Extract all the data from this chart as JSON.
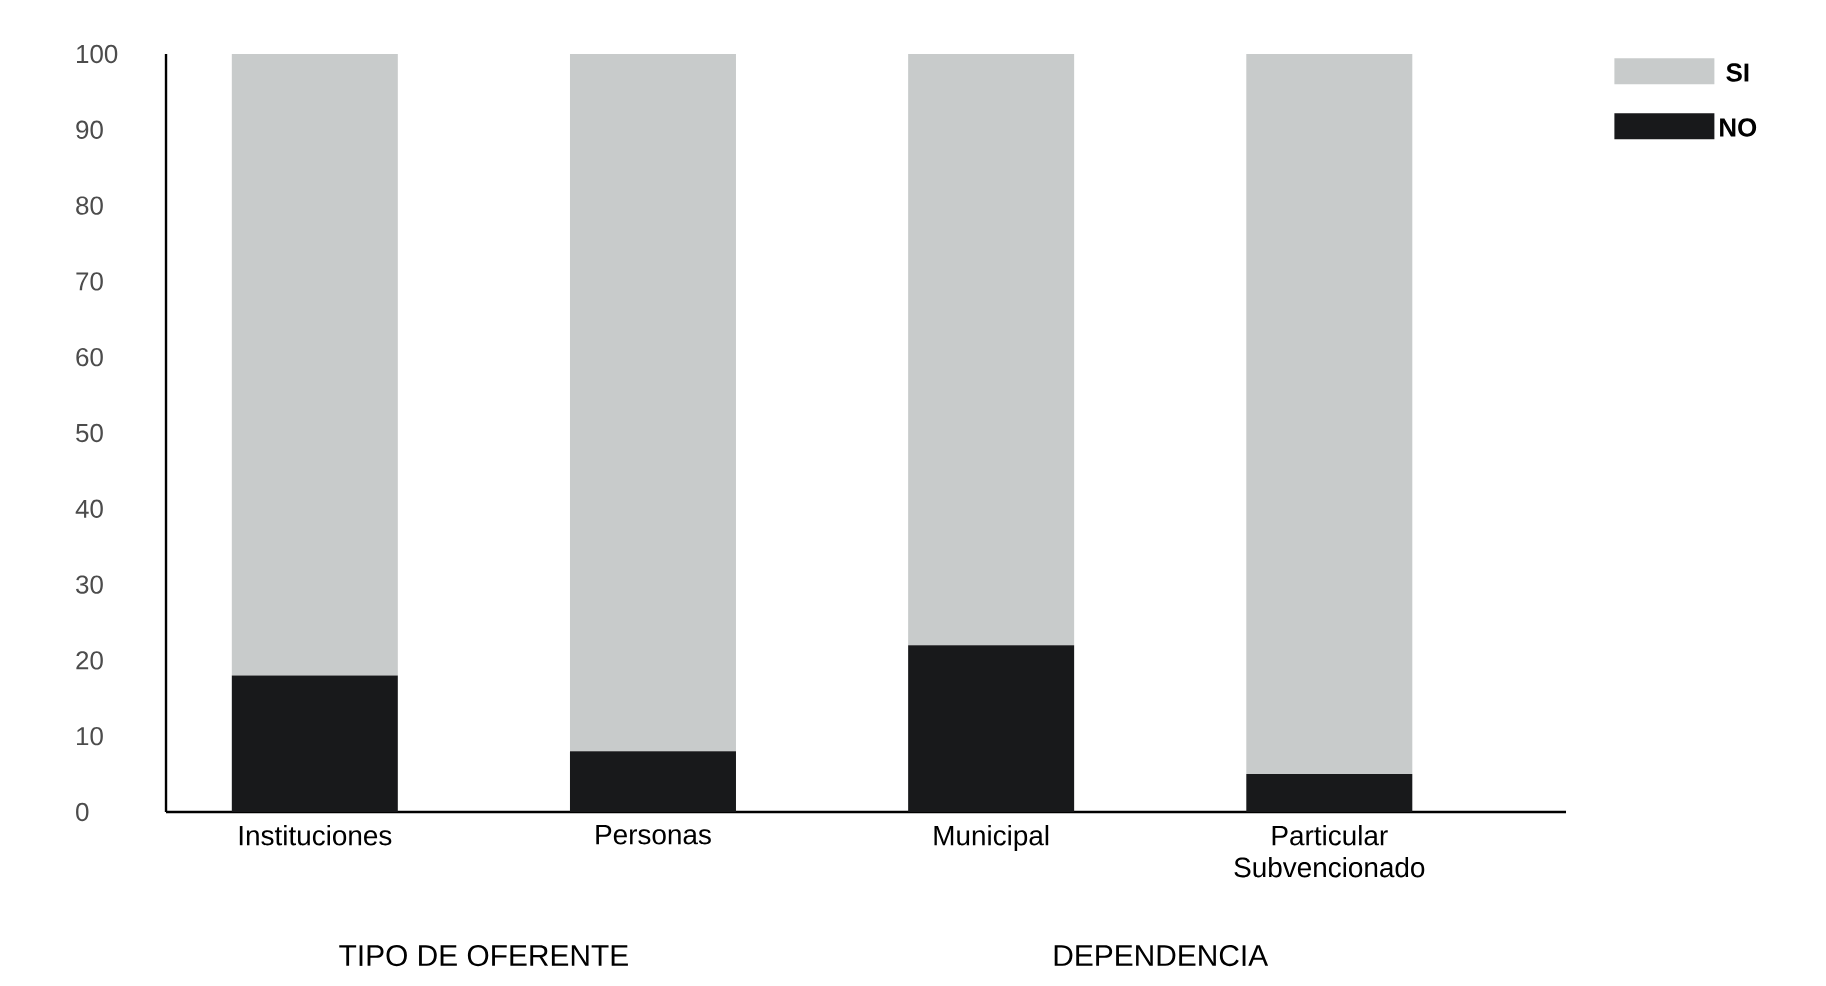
{
  "chart_data": {
    "type": "bar",
    "stacked": true,
    "categories": [
      "Instituciones",
      "Personas",
      "Municipal",
      "Particular Subvencionado"
    ],
    "series": [
      {
        "name": "NO",
        "color": "#18191b",
        "values": [
          18,
          8,
          22,
          5
        ]
      },
      {
        "name": "SI",
        "color": "#c8cbcb",
        "values": [
          82,
          92,
          78,
          95
        ]
      }
    ],
    "ylim": [
      0,
      100
    ],
    "yticks": [
      0,
      10,
      20,
      30,
      40,
      50,
      60,
      70,
      80,
      90,
      100
    ],
    "legend": "top right",
    "grid": false,
    "annotations": [
      "TIPO DE OFERENTE",
      "DEPENDENCIA"
    ]
  }
}
